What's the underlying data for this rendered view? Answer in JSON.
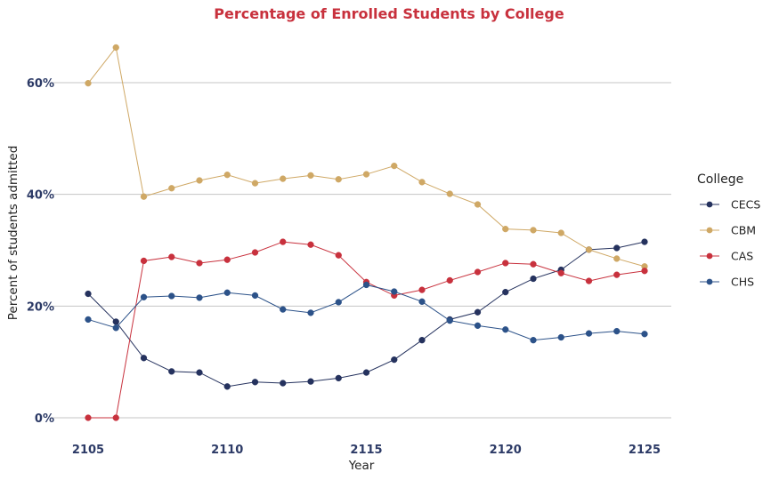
{
  "chart_data": {
    "type": "line",
    "title": "Percentage of Enrolled Students by College",
    "xlabel": "Year",
    "ylabel": "Percent of students admitted",
    "x": [
      2105,
      2106,
      2107,
      2108,
      2109,
      2110,
      2111,
      2112,
      2113,
      2114,
      2115,
      2116,
      2117,
      2118,
      2119,
      2120,
      2121,
      2122,
      2123,
      2124,
      2125
    ],
    "xticks": [
      2105,
      2110,
      2115,
      2120,
      2125
    ],
    "xtick_labels": [
      "2105",
      "2110",
      "2115",
      "2120",
      "2125"
    ],
    "yticks": [
      0,
      20,
      40,
      60
    ],
    "ytick_labels": [
      "0%",
      "20%",
      "40%",
      "60%"
    ],
    "xlim": [
      2105,
      2125
    ],
    "ylim": [
      0,
      64
    ],
    "grid": "horizontal",
    "legend_placement": "right",
    "legend_title": "College",
    "series": [
      {
        "name": "CECS",
        "color": "#25325e",
        "values": [
          22.2,
          17.2,
          10.7,
          8.3,
          8.1,
          5.6,
          6.4,
          6.2,
          6.5,
          7.1,
          8.1,
          10.4,
          13.9,
          17.6,
          18.9,
          22.5,
          24.9,
          26.5,
          30.1,
          30.4,
          31.5
        ]
      },
      {
        "name": "CBM",
        "color": "#cfa865",
        "values": [
          59.9,
          66.3,
          39.6,
          41.1,
          42.5,
          43.5,
          42.0,
          42.8,
          43.4,
          42.7,
          43.6,
          45.1,
          42.2,
          40.1,
          38.2,
          33.8,
          33.6,
          33.1,
          30.1,
          28.5,
          27.1
        ]
      },
      {
        "name": "CAS",
        "color": "#c8313d",
        "values": [
          0,
          0,
          28.1,
          28.8,
          27.7,
          28.3,
          29.6,
          31.5,
          31.0,
          29.1,
          24.3,
          21.9,
          22.9,
          24.6,
          26.1,
          27.7,
          27.5,
          25.9,
          24.5,
          25.6,
          26.3
        ]
      },
      {
        "name": "CHS",
        "color": "#2c5289",
        "values": [
          17.6,
          16.1,
          21.6,
          21.8,
          21.5,
          22.4,
          21.9,
          19.4,
          18.8,
          20.7,
          23.8,
          22.6,
          20.8,
          17.4,
          16.5,
          15.8,
          13.9,
          14.4,
          15.1,
          15.5,
          15.0
        ]
      }
    ]
  }
}
